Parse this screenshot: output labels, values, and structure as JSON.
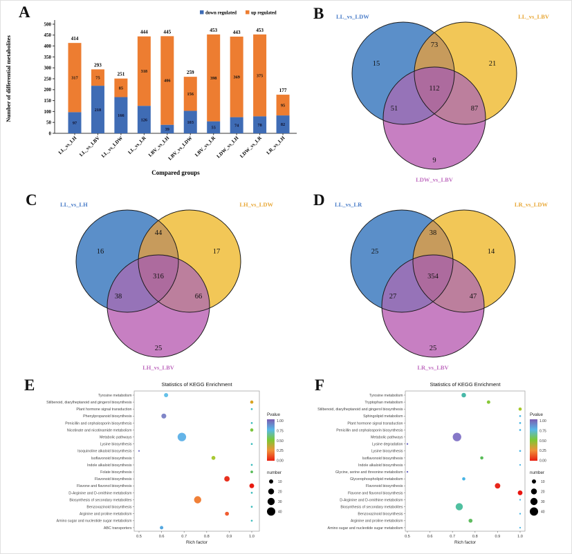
{
  "panels": {
    "a": {
      "letter": "A"
    },
    "b": {
      "letter": "B"
    },
    "c": {
      "letter": "C"
    },
    "d": {
      "letter": "D"
    },
    "e": {
      "letter": "E"
    },
    "f": {
      "letter": "F"
    }
  },
  "chart_data": [
    {
      "id": "A",
      "type": "bar",
      "stacked": true,
      "title": "",
      "xlabel": "Compared groups",
      "ylabel": "Number of differential metabolites",
      "ylim": [
        0,
        500
      ],
      "ytick_step": 50,
      "categories": [
        "LL_vs_LH",
        "LL_vs_LBV",
        "LL_vs_LDW",
        "LL_vs_LR",
        "LBV_vs_LH",
        "LBV_vs_LDW",
        "LBV_vs_LR",
        "LDW_vs_LH",
        "LDW_vs_LR",
        "LR_vs_LH"
      ],
      "series": [
        {
          "name": "down regulated",
          "color": "#3f6cb5",
          "values": [
            97,
            218,
            166,
            126,
            39,
            103,
            55,
            74,
            78,
            82
          ]
        },
        {
          "name": "up regulated",
          "color": "#ed7d31",
          "values": [
            317,
            75,
            85,
            318,
            406,
            156,
            398,
            369,
            375,
            95
          ]
        }
      ],
      "totals": [
        414,
        293,
        251,
        444,
        445,
        259,
        453,
        443,
        453,
        177
      ]
    },
    {
      "id": "B",
      "type": "venn",
      "sets": [
        {
          "name": "LL_vs_LDW",
          "color": "#5b8fc9",
          "label_color": "#4a7dc8"
        },
        {
          "name": "LL_vs_LBV",
          "color": "#f2c757",
          "label_color": "#e8a838"
        },
        {
          "name": "LDW_vs_LBV",
          "color": "#c77fc2",
          "label_color": "#c06ec0"
        }
      ],
      "overlap_colors": {
        "ab": "#c79b5c",
        "ac": "#9673b8",
        "bc": "#bc7f9d",
        "abc": "#ad6b9e"
      },
      "values": {
        "a": 15,
        "b": 21,
        "c": 9,
        "ab": 73,
        "ac": 51,
        "bc": 87,
        "abc": 112
      }
    },
    {
      "id": "C",
      "type": "venn",
      "sets": [
        {
          "name": "LL_vs_LH",
          "color": "#5b8fc9",
          "label_color": "#4a7dc8"
        },
        {
          "name": "LH_vs_LDW",
          "color": "#f2c757",
          "label_color": "#e8a838"
        },
        {
          "name": "LH_vs_LBV",
          "color": "#c77fc2",
          "label_color": "#c06ec0"
        }
      ],
      "overlap_colors": {
        "ab": "#c79b5c",
        "ac": "#9673b8",
        "bc": "#bc7f9d",
        "abc": "#ad6b9e"
      },
      "values": {
        "a": 16,
        "b": 17,
        "c": 25,
        "ab": 44,
        "ac": 38,
        "bc": 66,
        "abc": 316
      }
    },
    {
      "id": "D",
      "type": "venn",
      "sets": [
        {
          "name": "LL_vs_LR",
          "color": "#5b8fc9",
          "label_color": "#4a7dc8"
        },
        {
          "name": "LR_vs_LDW",
          "color": "#f2c757",
          "label_color": "#e8a838"
        },
        {
          "name": "LR_vs_LBV",
          "color": "#c77fc2",
          "label_color": "#c06ec0"
        }
      ],
      "overlap_colors": {
        "ab": "#c79b5c",
        "ac": "#9673b8",
        "bc": "#bc7f9d",
        "abc": "#ad6b9e"
      },
      "values": {
        "a": 25,
        "b": 14,
        "c": 25,
        "ab": 38,
        "ac": 27,
        "bc": 47,
        "abc": 354
      }
    },
    {
      "id": "E",
      "type": "scatter",
      "title": "Statistics of KEGG Enrichment",
      "xlabel": "Rich factor",
      "xlim": [
        0.5,
        1.0
      ],
      "xticks": [
        "0.5",
        "0.6",
        "0.7",
        "0.8",
        "0.9",
        "1.0"
      ],
      "legend": {
        "pvalue_title": "Pvalue",
        "pvalue_ticks": [
          "1.00",
          "0.75",
          "0.50",
          "0.25",
          "0.00"
        ],
        "gradient": [
          "#7a5cb0",
          "#58b8e8",
          "#7cc832",
          "#f09038",
          "#e81e10"
        ],
        "number_title": "number",
        "number_sizes": [
          10,
          20,
          30,
          40
        ]
      },
      "pathways": [
        {
          "label": "Tyrosine metabolism",
          "x": 0.62,
          "number": 10,
          "color": "#64c0e8"
        },
        {
          "label": "Stilbenoid, diarylheptanoid and gingerol biosynthesis",
          "x": 1.0,
          "number": 6,
          "color": "#d8a322"
        },
        {
          "label": "Plant hormone signal transduction",
          "x": 1.0,
          "number": 2,
          "color": "#3cbcbc"
        },
        {
          "label": "Phenylpropanoid biosynthesis",
          "x": 0.61,
          "number": 14,
          "color": "#8086c8"
        },
        {
          "label": "Penicillin and cephalosporin biosynthesis",
          "x": 1.0,
          "number": 2,
          "color": "#3cbcbc"
        },
        {
          "label": "Nicotinate and nicotinamide metabolism",
          "x": 1.0,
          "number": 6,
          "color": "#7cc43c"
        },
        {
          "label": "Metabolic pathways",
          "x": 0.69,
          "number": 42,
          "color": "#64b4e8"
        },
        {
          "label": "Lysine biosynthesis",
          "x": 1.0,
          "number": 2,
          "color": "#3cbcbc"
        },
        {
          "label": "Isoquinoline alkaloid biosynthesis",
          "x": 0.5,
          "number": 1.5,
          "color": "#7878c8"
        },
        {
          "label": "Isoflavonoid biosynthesis",
          "x": 0.83,
          "number": 9,
          "color": "#a8c832"
        },
        {
          "label": "Indole alkaloid biosynthesis",
          "x": 1.0,
          "number": 2,
          "color": "#3cbcbc"
        },
        {
          "label": "Folate biosynthesis",
          "x": 1.0,
          "number": 4,
          "color": "#58bc58"
        },
        {
          "label": "Flavonoid biosynthesis",
          "x": 0.89,
          "number": 17,
          "color": "#e8301e"
        },
        {
          "label": "Flavone and flavonol biosynthesis",
          "x": 1.0,
          "number": 13,
          "color": "#e81a10"
        },
        {
          "label": "D-Arginine and D-ornithine metabolism",
          "x": 1.0,
          "number": 2,
          "color": "#3cbcbc"
        },
        {
          "label": "Biosynthesis of secondary metabolites",
          "x": 0.76,
          "number": 30,
          "color": "#f08038"
        },
        {
          "label": "Benzoxazinoid biosynthesis",
          "x": 1.0,
          "number": 2,
          "color": "#3cbcbc"
        },
        {
          "label": "Arginine and proline metabolism",
          "x": 0.89,
          "number": 9,
          "color": "#f05c30"
        },
        {
          "label": "Amino sugar and nucleotide sugar metabolism",
          "x": 1.0,
          "number": 2,
          "color": "#3cbcbc"
        },
        {
          "label": "ABC transporters",
          "x": 0.6,
          "number": 7,
          "color": "#55a8e0"
        }
      ]
    },
    {
      "id": "F",
      "type": "scatter",
      "title": "Statistics of KEGG Enrichment",
      "xlabel": "Rich factor",
      "xlim": [
        0.5,
        1.0
      ],
      "xticks": [
        "0.5",
        "0.6",
        "0.7",
        "0.8",
        "0.9",
        "1.0"
      ],
      "legend": {
        "pvalue_title": "Pvalue",
        "pvalue_ticks": [
          "1.00",
          "0.75",
          "0.50",
          "0.25",
          "0.00"
        ],
        "gradient": [
          "#7a5cb0",
          "#58b8e8",
          "#7cc832",
          "#f09038",
          "#e81e10"
        ],
        "number_title": "number",
        "number_sizes": [
          10,
          20,
          30,
          40
        ]
      },
      "pathways": [
        {
          "label": "Tyrosine metabolism",
          "x": 0.75,
          "number": 12,
          "color": "#48b8a8"
        },
        {
          "label": "Tryptophan metabolism",
          "x": 0.86,
          "number": 7,
          "color": "#88c838"
        },
        {
          "label": "Stilbenoid, diarylheptanoid and gingerol biosynthesis",
          "x": 1.0,
          "number": 6,
          "color": "#a4c828"
        },
        {
          "label": "Sphingolipid metabolism",
          "x": 1.0,
          "number": 2,
          "color": "#48b4e4"
        },
        {
          "label": "Plant hormone signal transduction",
          "x": 1.0,
          "number": 2,
          "color": "#48b4e4"
        },
        {
          "label": "Penicillin and cephalosporin biosynthesis",
          "x": 1.0,
          "number": 2,
          "color": "#48b4e4"
        },
        {
          "label": "Metabolic pathways",
          "x": 0.72,
          "number": 42,
          "color": "#8678c8"
        },
        {
          "label": "Lysine degradation",
          "x": 0.5,
          "number": 1.5,
          "color": "#6864c4"
        },
        {
          "label": "Lysine biosynthesis",
          "x": 1.0,
          "number": 2,
          "color": "#48b4e4"
        },
        {
          "label": "Isoflavonoid biosynthesis",
          "x": 0.83,
          "number": 6,
          "color": "#58bc58"
        },
        {
          "label": "Indole alkaloid biosynthesis",
          "x": 1.0,
          "number": 1.5,
          "color": "#48b4e4"
        },
        {
          "label": "Glycine, serine and threonine metabolism",
          "x": 0.5,
          "number": 1.5,
          "color": "#6864c4"
        },
        {
          "label": "Glycerophospholipid metabolism",
          "x": 0.75,
          "number": 6,
          "color": "#48b4e4"
        },
        {
          "label": "Flavonoid biosynthesis",
          "x": 0.9,
          "number": 17,
          "color": "#e8251a"
        },
        {
          "label": "Flavone and flavonol biosynthesis",
          "x": 1.0,
          "number": 13,
          "color": "#e81510"
        },
        {
          "label": "D-Arginine and D-ornithine metabolism",
          "x": 1.0,
          "number": 1.5,
          "color": "#48b4e4"
        },
        {
          "label": "Biosynthesis of secondary metabolites",
          "x": 0.73,
          "number": 30,
          "color": "#50c0a0"
        },
        {
          "label": "Benzoxazinoid biosynthesis",
          "x": 1.0,
          "number": 1.5,
          "color": "#48b4e4"
        },
        {
          "label": "Arginine and proline metabolism",
          "x": 0.78,
          "number": 9,
          "color": "#60bc60"
        },
        {
          "label": "Amino sugar and nucleotide sugar metabolism",
          "x": 1.0,
          "number": 1.5,
          "color": "#48b4e4"
        }
      ]
    }
  ]
}
